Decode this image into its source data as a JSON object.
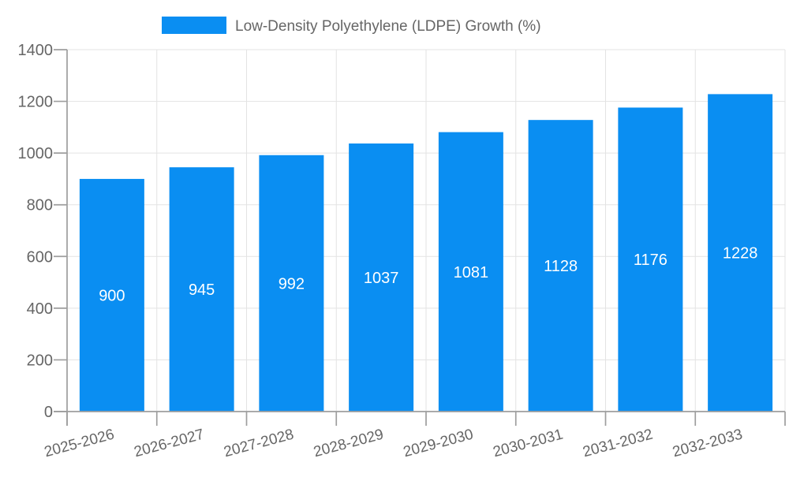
{
  "chart_data": {
    "type": "bar",
    "title": "",
    "legend": "Low-Density Polyethylene (LDPE) Growth (%)",
    "legend_position": "top-center",
    "categories": [
      "2025-2026",
      "2026-2027",
      "2027-2028",
      "2028-2029",
      "2029-2030",
      "2030-2031",
      "2031-2032",
      "2032-2033"
    ],
    "values": [
      900,
      945,
      992,
      1037,
      1081,
      1128,
      1176,
      1228
    ],
    "xlabel": "",
    "ylabel": "",
    "ylim": [
      0,
      1400
    ],
    "ytick_step": 200,
    "grid": "on",
    "colors": {
      "bar": "#0a8ef2",
      "axis": "#9e9e9e",
      "grid": "#e3e3e3",
      "tick_label": "#666666",
      "value_label": "#ffffff"
    }
  }
}
